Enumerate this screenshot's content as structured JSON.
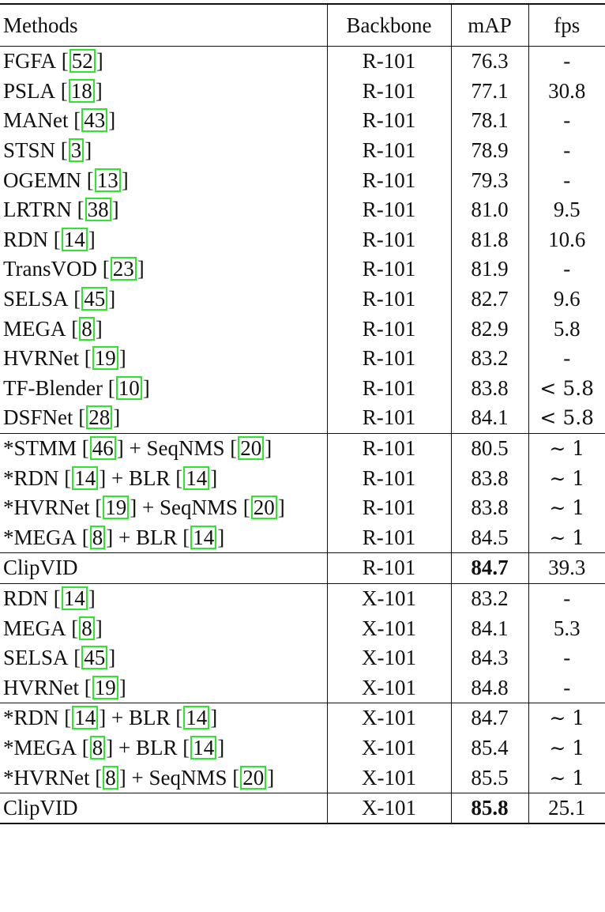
{
  "header": {
    "methods": "Methods",
    "backbone": "Backbone",
    "map": "mAP",
    "fps": "fps"
  },
  "groups": [
    {
      "rows": [
        {
          "parts": [
            {
              "t": "FGFA "
            },
            {
              "ref": "52"
            }
          ],
          "backbone": "R-101",
          "map": "76.3",
          "fps": "-"
        },
        {
          "parts": [
            {
              "t": "PSLA "
            },
            {
              "ref": "18"
            }
          ],
          "backbone": "R-101",
          "map": "77.1",
          "fps": "30.8"
        },
        {
          "parts": [
            {
              "t": "MANet "
            },
            {
              "ref": "43"
            }
          ],
          "backbone": "R-101",
          "map": "78.1",
          "fps": "-"
        },
        {
          "parts": [
            {
              "t": "STSN "
            },
            {
              "ref": "3"
            }
          ],
          "backbone": "R-101",
          "map": "78.9",
          "fps": "-"
        },
        {
          "parts": [
            {
              "t": "OGEMN "
            },
            {
              "ref": "13"
            }
          ],
          "backbone": "R-101",
          "map": "79.3",
          "fps": "-"
        },
        {
          "parts": [
            {
              "t": "LRTRN "
            },
            {
              "ref": "38"
            }
          ],
          "backbone": "R-101",
          "map": "81.0",
          "fps": "9.5"
        },
        {
          "parts": [
            {
              "t": "RDN "
            },
            {
              "ref": "14"
            }
          ],
          "backbone": "R-101",
          "map": "81.8",
          "fps": "10.6"
        },
        {
          "parts": [
            {
              "t": "TransVOD "
            },
            {
              "ref": "23"
            }
          ],
          "backbone": "R-101",
          "map": "81.9",
          "fps": "-"
        },
        {
          "parts": [
            {
              "t": "SELSA "
            },
            {
              "ref": "45"
            }
          ],
          "backbone": "R-101",
          "map": "82.7",
          "fps": "9.6"
        },
        {
          "parts": [
            {
              "t": "MEGA "
            },
            {
              "ref": "8"
            }
          ],
          "backbone": "R-101",
          "map": "82.9",
          "fps": "5.8"
        },
        {
          "parts": [
            {
              "t": "HVRNet "
            },
            {
              "ref": "19"
            }
          ],
          "backbone": "R-101",
          "map": "83.2",
          "fps": "-"
        },
        {
          "parts": [
            {
              "t": "TF-Blender "
            },
            {
              "ref": "10"
            }
          ],
          "backbone": "R-101",
          "map": "83.8",
          "fps": "< 5.8"
        },
        {
          "parts": [
            {
              "t": "DSFNet "
            },
            {
              "ref": "28"
            }
          ],
          "backbone": "R-101",
          "map": "84.1",
          "fps": "< 5.8"
        }
      ]
    },
    {
      "rows": [
        {
          "parts": [
            {
              "t": "*STMM "
            },
            {
              "ref": "46"
            },
            {
              "t": " + SeqNMS "
            },
            {
              "ref": "20"
            }
          ],
          "backbone": "R-101",
          "map": "80.5",
          "fps": "∼ 1"
        },
        {
          "parts": [
            {
              "t": "*RDN "
            },
            {
              "ref": "14"
            },
            {
              "t": " + BLR "
            },
            {
              "ref": "14"
            }
          ],
          "backbone": "R-101",
          "map": "83.8",
          "fps": "∼ 1"
        },
        {
          "parts": [
            {
              "t": "*HVRNet "
            },
            {
              "ref": "19"
            },
            {
              "t": " + SeqNMS "
            },
            {
              "ref": "20"
            }
          ],
          "backbone": "R-101",
          "map": "83.8",
          "fps": "∼ 1"
        },
        {
          "parts": [
            {
              "t": "*MEGA "
            },
            {
              "ref": "8"
            },
            {
              "t": " + BLR "
            },
            {
              "ref": "14"
            }
          ],
          "backbone": "R-101",
          "map": "84.5",
          "fps": "∼ 1"
        }
      ]
    },
    {
      "rows": [
        {
          "parts": [
            {
              "t": "ClipVID"
            }
          ],
          "backbone": "R-101",
          "map": "84.7",
          "fps": "39.3",
          "bold_map": true
        }
      ]
    },
    {
      "rows": [
        {
          "parts": [
            {
              "t": "RDN "
            },
            {
              "ref": "14"
            }
          ],
          "backbone": "X-101",
          "map": "83.2",
          "fps": "-"
        },
        {
          "parts": [
            {
              "t": "MEGA "
            },
            {
              "ref": "8"
            }
          ],
          "backbone": "X-101",
          "map": "84.1",
          "fps": "5.3"
        },
        {
          "parts": [
            {
              "t": "SELSA "
            },
            {
              "ref": "45"
            }
          ],
          "backbone": "X-101",
          "map": "84.3",
          "fps": "-"
        },
        {
          "parts": [
            {
              "t": "HVRNet "
            },
            {
              "ref": "19"
            }
          ],
          "backbone": "X-101",
          "map": "84.8",
          "fps": "-"
        }
      ]
    },
    {
      "rows": [
        {
          "parts": [
            {
              "t": "*RDN "
            },
            {
              "ref": "14"
            },
            {
              "t": " + BLR "
            },
            {
              "ref": "14"
            }
          ],
          "backbone": "X-101",
          "map": "84.7",
          "fps": "∼ 1"
        },
        {
          "parts": [
            {
              "t": "*MEGA "
            },
            {
              "ref": "8"
            },
            {
              "t": " + BLR "
            },
            {
              "ref": "14"
            }
          ],
          "backbone": "X-101",
          "map": "85.4",
          "fps": "∼ 1"
        },
        {
          "parts": [
            {
              "t": "*HVRNet "
            },
            {
              "ref": "8"
            },
            {
              "t": " + SeqNMS "
            },
            {
              "ref": "20"
            }
          ],
          "backbone": "X-101",
          "map": "85.5",
          "fps": "∼ 1"
        }
      ]
    },
    {
      "rows": [
        {
          "parts": [
            {
              "t": "ClipVID"
            }
          ],
          "backbone": "X-101",
          "map": "85.8",
          "fps": "25.1",
          "bold_map": true
        }
      ]
    }
  ],
  "colors": {
    "reference_box": "#2ee62e",
    "text": "#111111"
  }
}
